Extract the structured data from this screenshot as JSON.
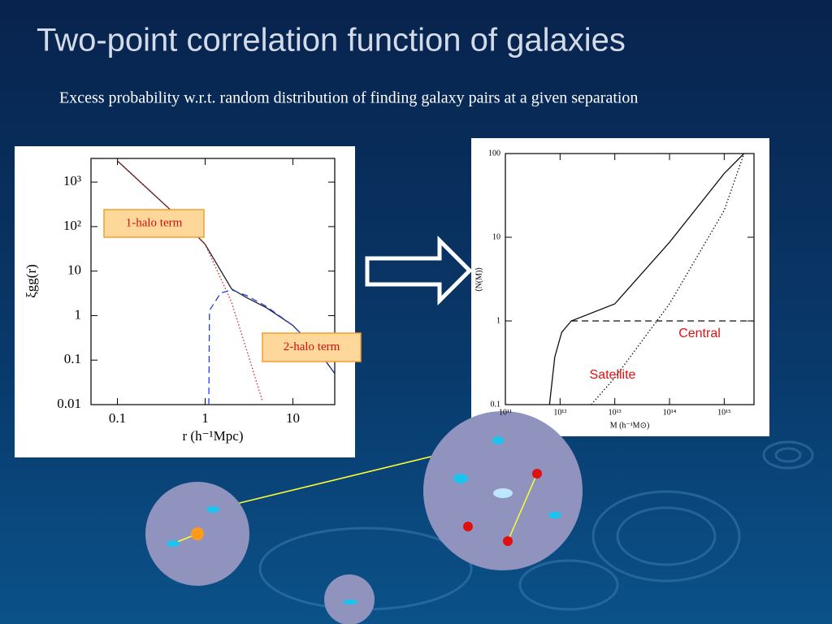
{
  "title": "Two-point correlation function of galaxies",
  "subtitle": "Excess probability w.r.t. random distribution of finding galaxy pairs at a given separation",
  "chart_data": [
    {
      "type": "line",
      "xscale": "log",
      "yscale": "log",
      "xlabel": "r (h⁻¹Mpc)",
      "ylabel": "ξgg(r)",
      "xlim": [
        0.05,
        30
      ],
      "ylim": [
        0.01,
        3400
      ],
      "xticks": [
        0.1,
        1,
        10
      ],
      "yticks": [
        {
          "value": 1000,
          "label": "10³"
        },
        {
          "value": 100,
          "label": "10²"
        },
        10,
        1,
        0.1,
        0.01
      ],
      "series": [
        {
          "color": "#222222",
          "style": "solid",
          "x": [
            0.1,
            0.2,
            0.5,
            1,
            2,
            3,
            5,
            10,
            20,
            30
          ],
          "values": [
            3000,
            850,
            160,
            40,
            4,
            2.5,
            1.5,
            0.6,
            0.15,
            0.05
          ]
        },
        {
          "color": "#e02020",
          "style": "dotted",
          "x": [
            0.1,
            0.2,
            0.5,
            1,
            2,
            3,
            4.5
          ],
          "values": [
            3000,
            850,
            160,
            40,
            2,
            0.16,
            0.012
          ]
        },
        {
          "color": "#2040e0",
          "style": "dashed",
          "x": [
            1.1,
            1.12,
            1.5,
            2,
            3,
            5,
            10,
            20,
            30
          ],
          "values": [
            0.01,
            1.3,
            3.2,
            3.8,
            2.8,
            1.6,
            0.6,
            0.15,
            0.05
          ]
        }
      ],
      "annotations": [
        "1-halo term",
        "2-halo term"
      ]
    },
    {
      "type": "line",
      "xscale": "log",
      "yscale": "log",
      "xlabel": "M (h⁻¹M⊙)",
      "ylabel": "⟨N(M)⟩",
      "xlim": [
        100000000000.0,
        3500000000000000.0
      ],
      "ylim": [
        0.1,
        100
      ],
      "xticks": [
        {
          "value": 100000000000.0,
          "label": "10¹¹"
        },
        {
          "value": 1000000000000.0,
          "label": "10¹²"
        },
        {
          "value": 10000000000000.0,
          "label": "10¹³"
        },
        {
          "value": 100000000000000.0,
          "label": "10¹⁴"
        },
        {
          "value": 1000000000000000.0,
          "label": "10¹⁵"
        }
      ],
      "yticks": [
        100,
        10,
        1,
        0.1
      ],
      "series": [
        {
          "color": "#111111",
          "style": "solid",
          "x": [
            640000000000.0,
            800000000000.0,
            1070000000000.0,
            1600000000000.0,
            10000000000000.0,
            100000000000000.0,
            1000000000000000.0,
            2300000000000000.0
          ],
          "values": [
            0.1,
            0.37,
            0.73,
            1,
            1.6,
            8.7,
            58,
            100
          ]
        },
        {
          "color": "#111111",
          "style": "dashed",
          "x": [
            1600000000000.0,
            3500000000000000.0
          ],
          "values": [
            1,
            1
          ]
        },
        {
          "color": "#111111",
          "style": "dotted",
          "x": [
            3700000000000.0,
            10000000000000.0,
            100000000000000.0,
            1000000000000000.0,
            2300000000000000.0
          ],
          "values": [
            0.1,
            0.21,
            1.6,
            21,
            100
          ]
        }
      ],
      "annotations": [
        "Central",
        "Satellite"
      ]
    }
  ]
}
